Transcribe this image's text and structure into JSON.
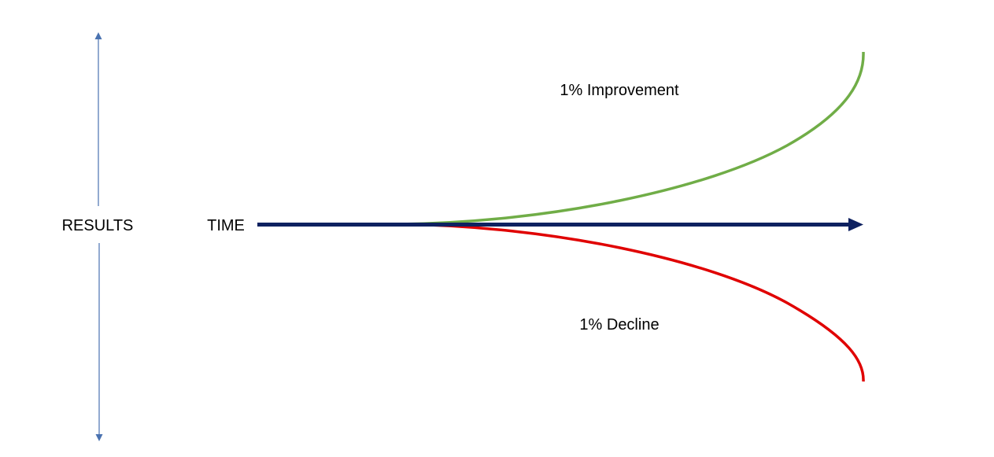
{
  "diagram": {
    "vertical_axis_label": "RESULTS",
    "horizontal_axis_label": "TIME",
    "upper_curve_label": "1% Improvement",
    "lower_curve_label": "1% Decline"
  },
  "colors": {
    "vertical_axis": "#4a72b0",
    "time_arrow": "#0e2160",
    "improvement_curve": "#70ad47",
    "decline_curve": "#e00000",
    "text": "#000000"
  }
}
